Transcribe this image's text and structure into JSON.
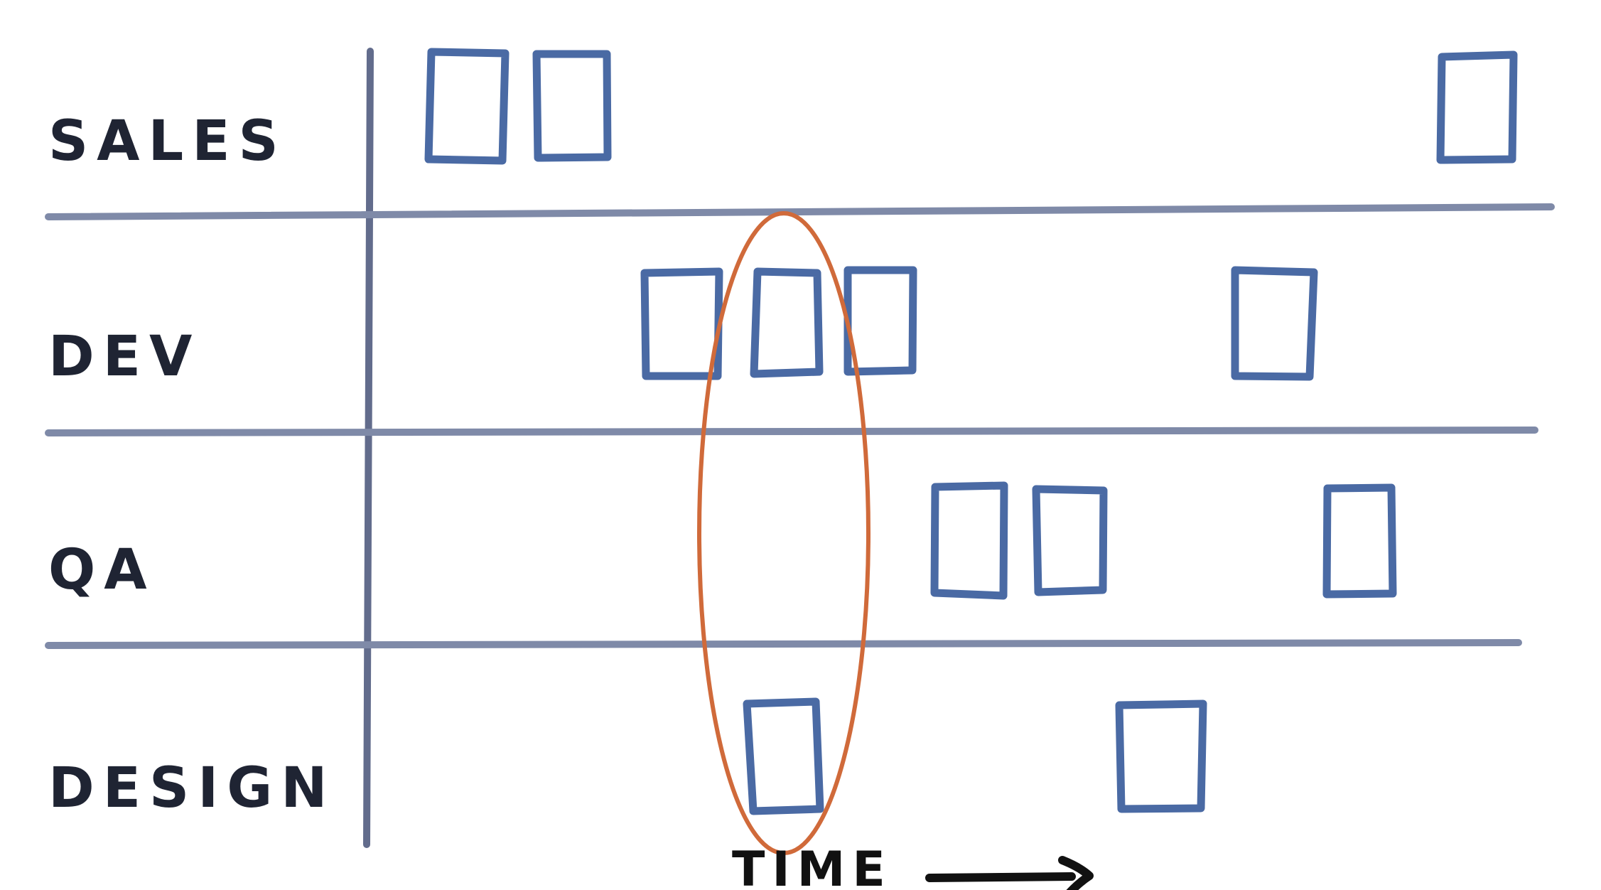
{
  "lanes": [
    {
      "label": "SALES"
    },
    {
      "label": "DEV"
    },
    {
      "label": "QA"
    },
    {
      "label": "DESIGN"
    }
  ],
  "axis": {
    "label": "TIME"
  },
  "colors": {
    "lane_text": "#1f2433",
    "divider": "#7f8aa8",
    "vertical_axis": "#626c8c",
    "task": "#4a6aa4",
    "highlight": "#d06a3a",
    "arrow": "#111111"
  }
}
